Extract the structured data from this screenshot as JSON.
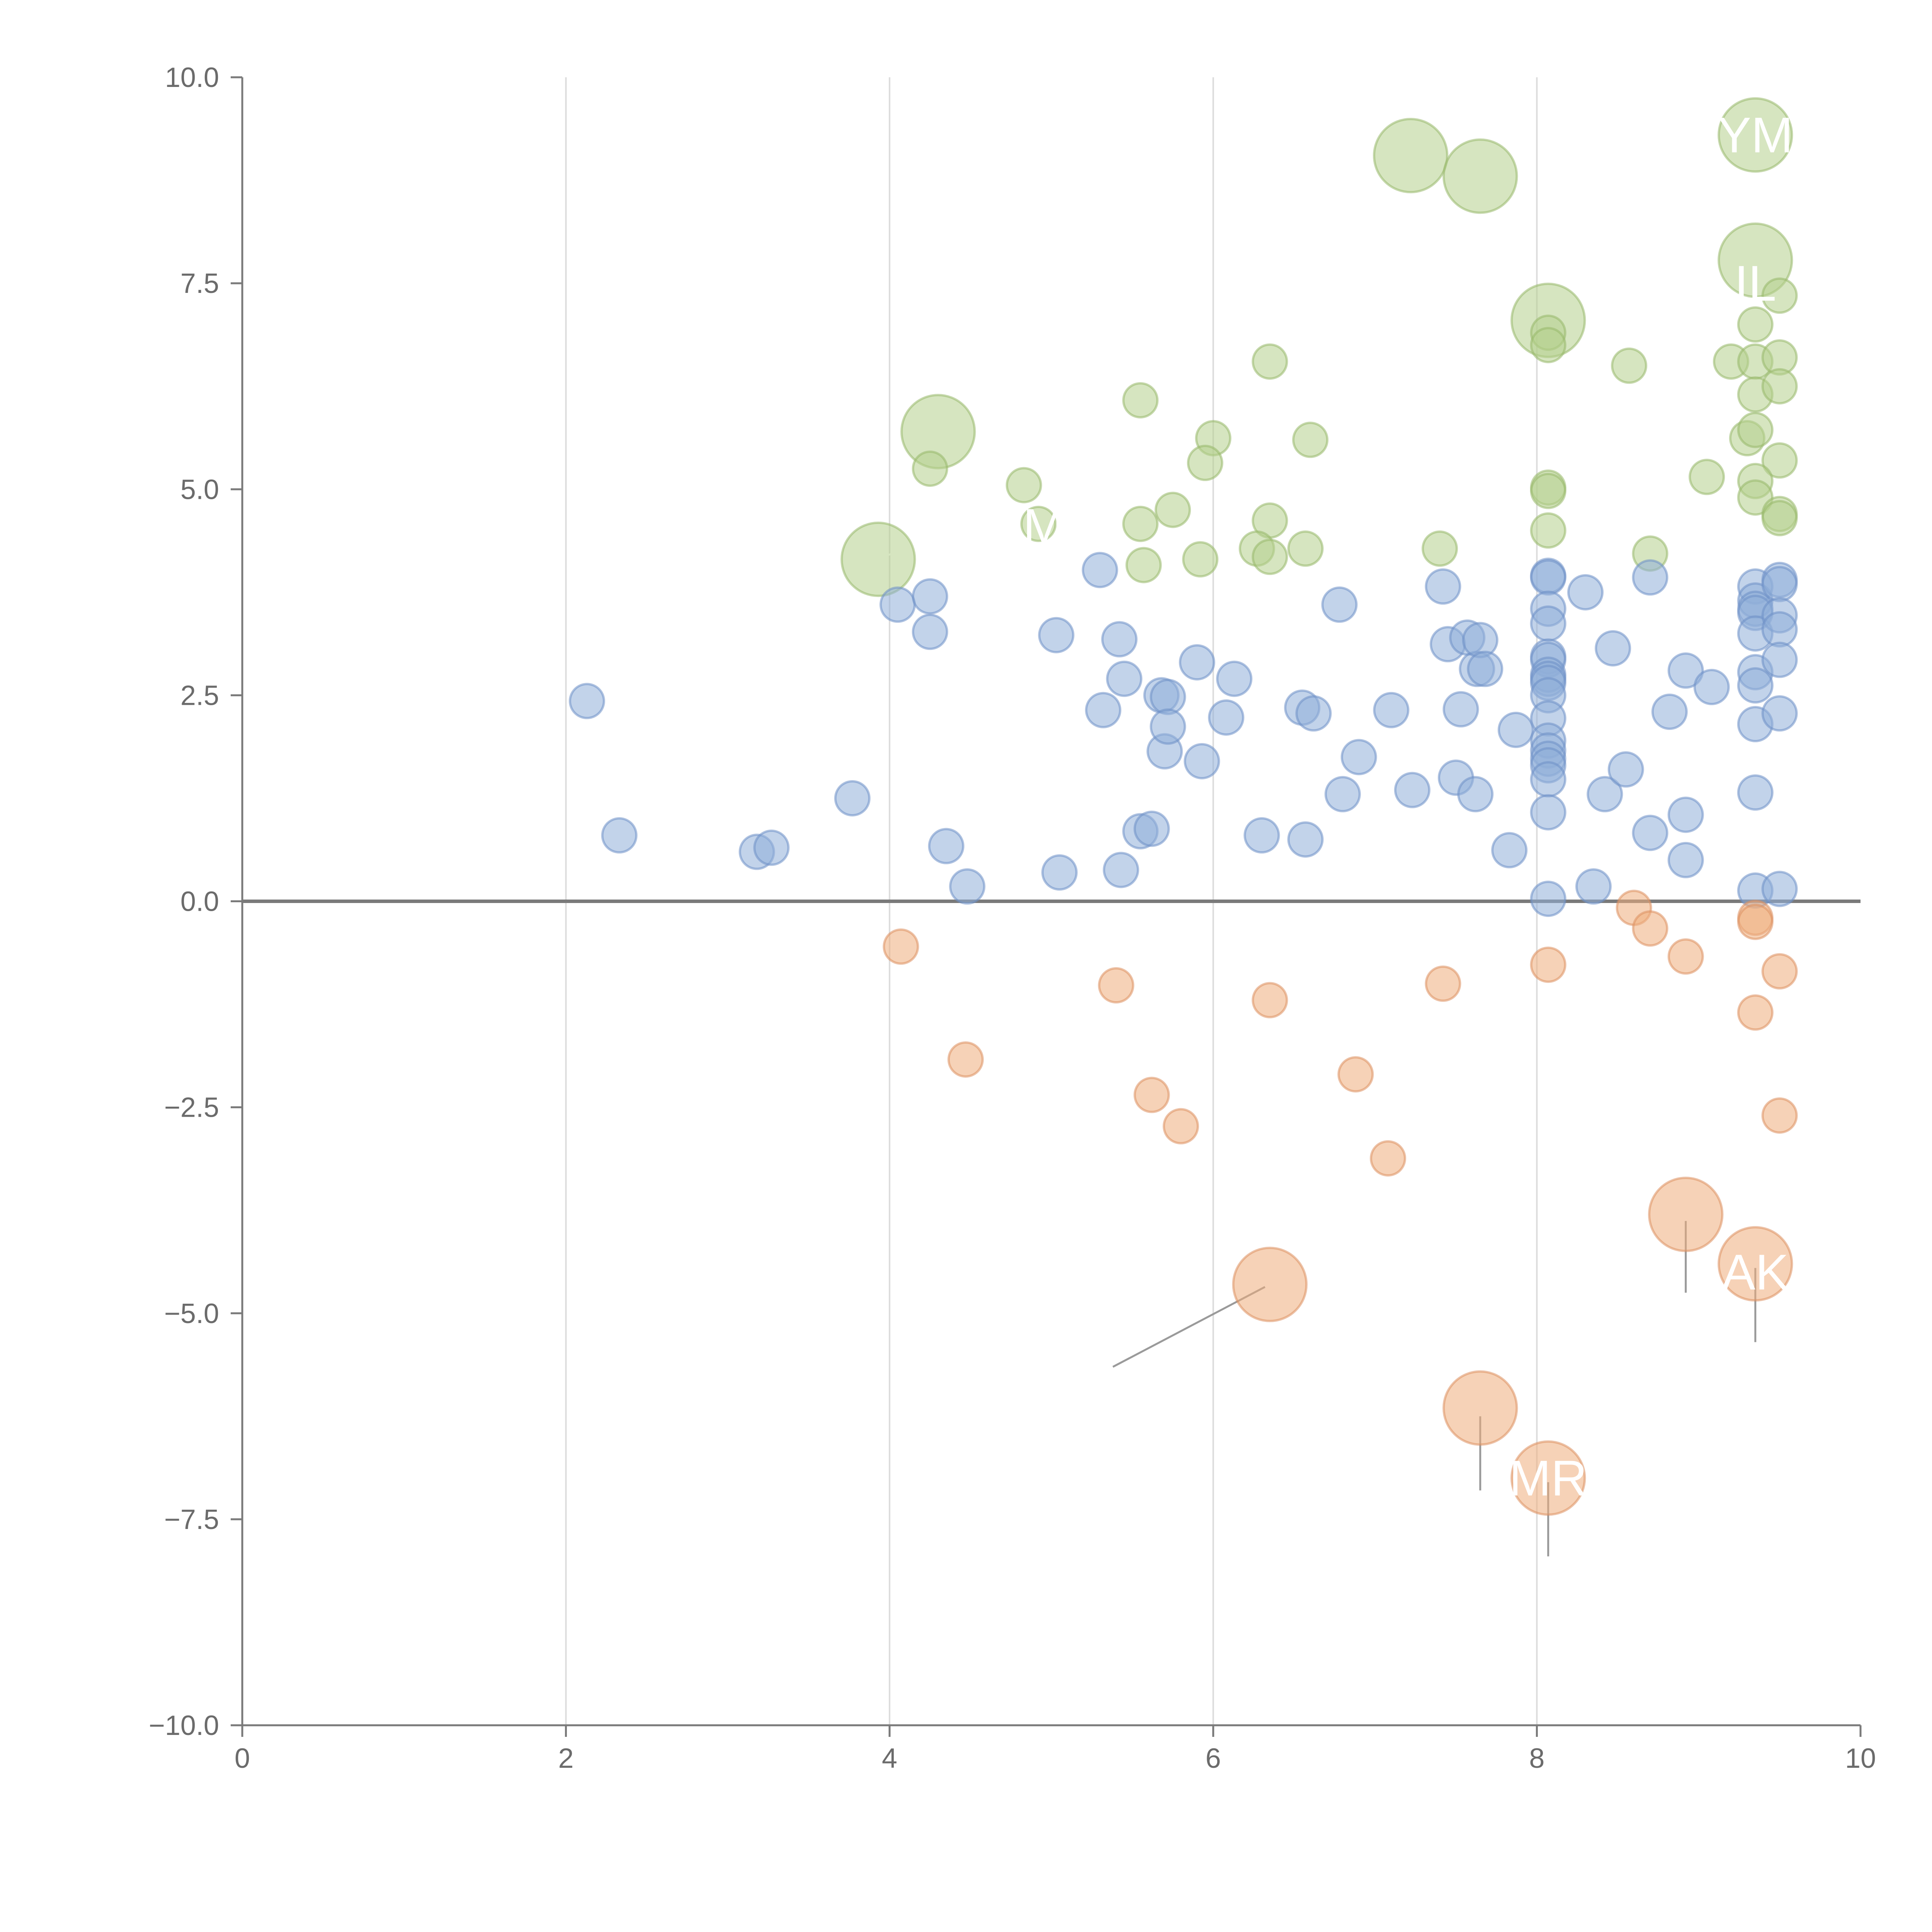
{
  "chart_data": {
    "type": "scatter",
    "title": "",
    "xlabel": "",
    "ylabel": "",
    "xlim": [
      0,
      10
    ],
    "ylim": [
      -10,
      10
    ],
    "x_ticks": [
      0,
      2,
      4,
      6,
      8,
      10
    ],
    "y_ticks": [
      10,
      7.5,
      5,
      2.5,
      0,
      -2.5,
      -5,
      -7.5,
      -10
    ],
    "x_tick_labels": [
      "0",
      "2",
      "4",
      "6",
      "8",
      "10"
    ],
    "y_tick_labels": [
      "10.0",
      "7.5",
      "5.0",
      "2.5",
      "0.0",
      "−2.5",
      "−5.0",
      "−7.5",
      "−10.0"
    ],
    "grid": "vertical",
    "baseline": 0,
    "colors": {
      "green": "#b5d08c",
      "blue": "#8faed9",
      "orange": "#efad7b"
    },
    "series": [
      {
        "name": "green",
        "color": "#b5d08c",
        "stroke": "#97b86a",
        "points": [
          [
            7.22,
            9.05,
            2.2
          ],
          [
            7.65,
            8.8,
            2.2
          ],
          [
            9.35,
            9.3,
            2.2
          ],
          [
            9.35,
            7.78,
            2.2
          ],
          [
            8.07,
            7.05,
            2.2
          ],
          [
            4.3,
            5.7,
            2.2
          ],
          [
            3.93,
            4.15,
            2.2
          ],
          [
            9.5,
            7.35,
            1
          ],
          [
            9.35,
            7.0,
            1
          ],
          [
            8.07,
            6.9,
            1
          ],
          [
            8.07,
            6.75,
            1
          ],
          [
            6.35,
            6.55,
            1
          ],
          [
            8.57,
            6.5,
            1
          ],
          [
            9.2,
            6.55,
            1
          ],
          [
            9.35,
            6.55,
            1
          ],
          [
            9.5,
            6.6,
            1
          ],
          [
            9.35,
            6.15,
            1
          ],
          [
            9.5,
            6.25,
            1
          ],
          [
            5.55,
            6.08,
            1
          ],
          [
            6.0,
            5.62,
            1
          ],
          [
            6.6,
            5.6,
            1
          ],
          [
            9.3,
            5.62,
            1
          ],
          [
            9.35,
            5.72,
            1
          ],
          [
            4.25,
            5.25,
            1
          ],
          [
            5.95,
            5.32,
            1
          ],
          [
            9.5,
            5.35,
            1
          ],
          [
            9.05,
            5.15,
            1
          ],
          [
            9.35,
            5.1,
            1
          ],
          [
            4.83,
            5.05,
            1
          ],
          [
            8.07,
            5.02,
            1
          ],
          [
            8.07,
            4.98,
            1
          ],
          [
            9.35,
            4.9,
            1
          ],
          [
            9.5,
            4.7,
            1
          ],
          [
            9.5,
            4.65,
            1
          ],
          [
            4.92,
            4.58,
            1
          ],
          [
            5.55,
            4.58,
            1
          ],
          [
            5.75,
            4.75,
            1
          ],
          [
            6.35,
            4.62,
            1
          ],
          [
            8.07,
            4.5,
            1
          ],
          [
            5.57,
            4.08,
            1
          ],
          [
            5.92,
            4.15,
            1
          ],
          [
            6.27,
            4.28,
            1
          ],
          [
            6.35,
            4.18,
            1
          ],
          [
            6.57,
            4.28,
            1
          ],
          [
            7.4,
            4.28,
            1
          ],
          [
            8.7,
            4.22,
            1
          ]
        ]
      },
      {
        "name": "blue",
        "color": "#8faed9",
        "stroke": "#6d8fc7",
        "points": [
          [
            2.13,
            2.43,
            1
          ],
          [
            2.33,
            0.8,
            1
          ],
          [
            3.18,
            0.6,
            1
          ],
          [
            3.27,
            0.65,
            1
          ],
          [
            3.77,
            1.25,
            1
          ],
          [
            4.05,
            3.6,
            1
          ],
          [
            4.25,
            3.27,
            1
          ],
          [
            4.25,
            3.7,
            1
          ],
          [
            4.35,
            0.67,
            1
          ],
          [
            4.48,
            0.18,
            1
          ],
          [
            5.03,
            3.23,
            1
          ],
          [
            5.05,
            0.35,
            1
          ],
          [
            5.3,
            4.02,
            1
          ],
          [
            5.32,
            2.32,
            1
          ],
          [
            5.42,
            3.18,
            1
          ],
          [
            5.43,
            0.38,
            1
          ],
          [
            5.45,
            2.7,
            1
          ],
          [
            5.55,
            0.85,
            1
          ],
          [
            5.62,
            0.88,
            1
          ],
          [
            5.68,
            2.5,
            1
          ],
          [
            5.7,
            1.82,
            1
          ],
          [
            5.72,
            2.48,
            1
          ],
          [
            5.72,
            2.12,
            1
          ],
          [
            5.9,
            2.9,
            1
          ],
          [
            5.93,
            1.7,
            1
          ],
          [
            6.08,
            2.23,
            1
          ],
          [
            6.13,
            2.7,
            1
          ],
          [
            6.3,
            0.8,
            1
          ],
          [
            6.55,
            2.35,
            1
          ],
          [
            6.57,
            0.75,
            1
          ],
          [
            6.62,
            2.28,
            1
          ],
          [
            6.78,
            3.6,
            1
          ],
          [
            6.8,
            1.3,
            1
          ],
          [
            6.9,
            1.75,
            1
          ],
          [
            7.1,
            2.32,
            1
          ],
          [
            7.23,
            1.35,
            1
          ],
          [
            7.42,
            3.82,
            1
          ],
          [
            7.45,
            3.12,
            1
          ],
          [
            7.5,
            1.5,
            1
          ],
          [
            7.53,
            2.33,
            1
          ],
          [
            7.57,
            3.2,
            1
          ],
          [
            7.62,
            1.3,
            1
          ],
          [
            7.63,
            2.82,
            1
          ],
          [
            7.65,
            3.17,
            1
          ],
          [
            7.68,
            2.82,
            1
          ],
          [
            7.87,
            2.08,
            1
          ],
          [
            7.83,
            0.62,
            1
          ],
          [
            8.07,
            3.95,
            1
          ],
          [
            8.07,
            3.93,
            1
          ],
          [
            8.07,
            3.55,
            1
          ],
          [
            8.07,
            3.37,
            1
          ],
          [
            8.07,
            2.97,
            1
          ],
          [
            8.07,
            2.93,
            1
          ],
          [
            8.07,
            2.75,
            1
          ],
          [
            8.07,
            2.7,
            1
          ],
          [
            8.07,
            2.65,
            1
          ],
          [
            8.07,
            2.5,
            1
          ],
          [
            8.07,
            2.22,
            1
          ],
          [
            8.07,
            1.95,
            1
          ],
          [
            8.07,
            1.83,
            1
          ],
          [
            8.07,
            1.73,
            1
          ],
          [
            8.07,
            1.65,
            1
          ],
          [
            8.07,
            1.48,
            1
          ],
          [
            8.07,
            1.08,
            1
          ],
          [
            8.07,
            0.03,
            1
          ],
          [
            8.3,
            3.75,
            1
          ],
          [
            8.35,
            0.18,
            1
          ],
          [
            8.42,
            1.3,
            1
          ],
          [
            8.47,
            3.07,
            1
          ],
          [
            8.55,
            1.6,
            1
          ],
          [
            8.7,
            3.93,
            1
          ],
          [
            8.7,
            0.83,
            1
          ],
          [
            8.82,
            2.3,
            1
          ],
          [
            8.92,
            2.8,
            1
          ],
          [
            8.92,
            1.05,
            1
          ],
          [
            8.92,
            0.5,
            1
          ],
          [
            9.08,
            2.6,
            1
          ],
          [
            9.35,
            3.82,
            1
          ],
          [
            9.35,
            3.65,
            1
          ],
          [
            9.35,
            3.55,
            1
          ],
          [
            9.35,
            3.5,
            1
          ],
          [
            9.35,
            3.25,
            1
          ],
          [
            9.35,
            2.78,
            1
          ],
          [
            9.35,
            2.62,
            1
          ],
          [
            9.35,
            2.15,
            1
          ],
          [
            9.35,
            1.32,
            1
          ],
          [
            9.35,
            0.13,
            1
          ],
          [
            9.5,
            3.9,
            1
          ],
          [
            9.5,
            3.85,
            1
          ],
          [
            9.5,
            3.47,
            1
          ],
          [
            9.5,
            3.3,
            1
          ],
          [
            9.5,
            2.93,
            1
          ],
          [
            9.5,
            2.28,
            1
          ],
          [
            9.5,
            0.15,
            1
          ]
        ]
      },
      {
        "name": "orange",
        "color": "#efad7b",
        "stroke": "#dd9060",
        "points": [
          [
            8.92,
            -3.8,
            2.2
          ],
          [
            9.35,
            -4.4,
            2.2
          ],
          [
            6.35,
            -4.65,
            2.2
          ],
          [
            7.65,
            -6.15,
            2.2
          ],
          [
            8.07,
            -7.0,
            2.2
          ],
          [
            4.07,
            -0.55,
            1
          ],
          [
            4.47,
            -1.92,
            1
          ],
          [
            5.4,
            -1.02,
            1
          ],
          [
            5.62,
            -2.35,
            1
          ],
          [
            5.8,
            -2.73,
            1
          ],
          [
            6.35,
            -1.2,
            1
          ],
          [
            6.88,
            -2.1,
            1
          ],
          [
            7.08,
            -3.12,
            1
          ],
          [
            7.42,
            -1.0,
            1
          ],
          [
            8.07,
            -0.77,
            1
          ],
          [
            8.6,
            -0.08,
            1
          ],
          [
            8.7,
            -0.33,
            1
          ],
          [
            8.92,
            -0.67,
            1
          ],
          [
            9.35,
            -0.2,
            1
          ],
          [
            9.35,
            -0.25,
            1
          ],
          [
            9.35,
            -1.35,
            1
          ],
          [
            9.5,
            -0.85,
            1
          ],
          [
            9.5,
            -2.6,
            1
          ]
        ]
      }
    ],
    "annotations": [
      {
        "text": "YM",
        "x": 9.35,
        "y": 9.3,
        "anchor_x": 9.35,
        "anchor_y": 9.3
      },
      {
        "text": "IL",
        "x": 9.35,
        "y": 7.5,
        "anchor_x": 9.35,
        "anchor_y": 7.78
      },
      {
        "text": "AM",
        "x": 4.85,
        "y": 4.55,
        "anchor_x": 3.93,
        "anchor_y": 4.15
      },
      {
        "text": "AK",
        "x": 9.35,
        "y": -4.5,
        "anchor_x": 9.35,
        "anchor_y": -4.4
      },
      {
        "text": "MR",
        "x": 8.07,
        "y": -7.0,
        "anchor_x": 8.07,
        "anchor_y": -7.0
      }
    ],
    "leader_lines": [
      {
        "from": [
          7.68,
          8.8
        ],
        "to": [
          7.95,
          9.05
        ],
        "light": true
      },
      {
        "from": [
          3.98,
          4.2
        ],
        "to": [
          4.35,
          4.35
        ],
        "light": true
      },
      {
        "from": [
          8.92,
          -3.88
        ],
        "to": [
          8.92,
          -4.75
        ],
        "light": false
      },
      {
        "from": [
          9.35,
          -4.45
        ],
        "to": [
          9.35,
          -5.35
        ],
        "light": false
      },
      {
        "from": [
          6.32,
          -4.68
        ],
        "to": [
          5.38,
          -5.65
        ],
        "light": false
      },
      {
        "from": [
          7.65,
          -6.25
        ],
        "to": [
          7.65,
          -7.15
        ],
        "light": false
      },
      {
        "from": [
          8.07,
          -7.05
        ],
        "to": [
          8.07,
          -7.95
        ],
        "light": false
      }
    ]
  }
}
